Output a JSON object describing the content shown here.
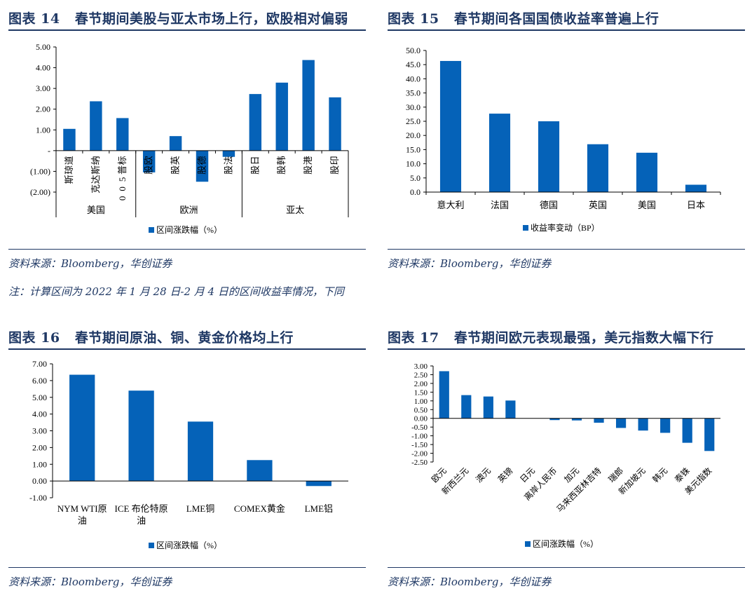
{
  "note": "注：计算区间为 2022 年 1 月 28 日-2 月 4 日的区间收益率情况，下同",
  "bar_color": "#0562b8",
  "heading_color": "#1f3864",
  "chart_data": [
    {
      "id": "chart14",
      "type": "bar",
      "figure_label": "图表 14",
      "title": "春节期间美股与亚太市场上行，欧股相对偏弱",
      "source": "资料来源：Bloomberg，华创证券",
      "legend": "区间涨跌幅（%）",
      "ylim": [
        -2,
        5
      ],
      "yticks": [
        "5.00",
        "4.00",
        "3.00",
        "2.00",
        "1.00",
        "-",
        "(1.00)",
        "(2.00)"
      ],
      "categories": [
        "道琼斯",
        "纳斯达克",
        "标普500",
        "欧股",
        "英股",
        "德股",
        "法股",
        "日股",
        "韩股",
        "港股",
        "印股"
      ],
      "values": [
        1.05,
        2.38,
        1.57,
        -1.05,
        0.7,
        -1.5,
        -0.3,
        2.73,
        3.28,
        4.37,
        2.57
      ],
      "groups": [
        {
          "label": "美国",
          "start": 0,
          "end": 2
        },
        {
          "label": "欧洲",
          "start": 3,
          "end": 6
        },
        {
          "label": "亚太",
          "start": 7,
          "end": 10
        }
      ]
    },
    {
      "id": "chart15",
      "type": "bar",
      "figure_label": "图表 15",
      "title": "春节期间各国国债收益率普遍上行",
      "source": "资料来源：Bloomberg，华创证券",
      "legend": "收益率变动（BP）",
      "ylim": [
        0,
        50
      ],
      "yticks": [
        "50.0",
        "45.0",
        "40.0",
        "35.0",
        "30.0",
        "25.0",
        "20.0",
        "15.0",
        "10.0",
        "5.0",
        "0.0"
      ],
      "categories": [
        "意大利",
        "法国",
        "德国",
        "英国",
        "美国",
        "日本"
      ],
      "values": [
        46.3,
        27.7,
        25.0,
        16.9,
        13.9,
        2.6
      ]
    },
    {
      "id": "chart16",
      "type": "bar",
      "figure_label": "图表 16",
      "title": "春节期间原油、铜、黄金价格均上行",
      "source": "资料来源：Bloomberg，华创证券",
      "legend": "区间涨跌幅（%）",
      "ylim": [
        -1,
        7
      ],
      "yticks": [
        "7.00",
        "6.00",
        "5.00",
        "4.00",
        "3.00",
        "2.00",
        "1.00",
        "0.00",
        "-1.00"
      ],
      "categories": [
        "NYM WTI原油",
        "ICE 布伦特原油",
        "LME铜",
        "COMEX黄金",
        "LME铝"
      ],
      "category_lines": [
        [
          "NYM WTI原",
          "油"
        ],
        [
          "ICE 布伦特原",
          "油"
        ],
        [
          "LME铜"
        ],
        [
          "COMEX黄金"
        ],
        [
          "LME铝"
        ]
      ],
      "values": [
        6.35,
        5.4,
        3.55,
        1.25,
        -0.3
      ]
    },
    {
      "id": "chart17",
      "type": "bar",
      "figure_label": "图表 17",
      "title": "春节期间欧元表现最强，美元指数大幅下行",
      "source": "资料来源：Bloomberg，华创证券",
      "legend": "区间涨跌幅（%）",
      "ylim": [
        -2.5,
        3
      ],
      "yticks": [
        "3.00",
        "2.50",
        "2.00",
        "1.50",
        "1.00",
        "0.50",
        "0.00",
        "-0.50",
        "-1.00",
        "-1.50",
        "-2.00",
        "-2.50"
      ],
      "categories": [
        "欧元",
        "新西兰元",
        "澳元",
        "英镑",
        "日元",
        "离岸人民币",
        "加元",
        "马来西亚林吉特",
        "瑞郎",
        "新加坡元",
        "韩元",
        "泰铢",
        "美元指数"
      ],
      "values": [
        2.7,
        1.33,
        1.25,
        1.02,
        0.0,
        -0.1,
        -0.12,
        -0.25,
        -0.55,
        -0.7,
        -0.83,
        -1.4,
        -1.87
      ]
    }
  ]
}
